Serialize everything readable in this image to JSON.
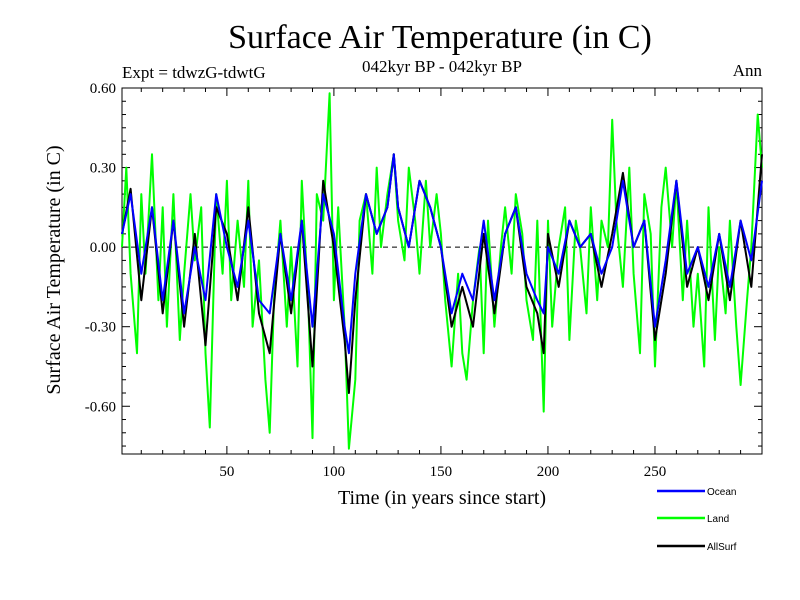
{
  "chart_data": {
    "type": "line",
    "title": "Surface Air Temperature (in C)",
    "subtitle": "042kyr BP - 042kyr BP",
    "expt_label": "Expt = tdwzG-tdwtG",
    "season_label": "Ann",
    "xlabel": "Time (in years since start)",
    "ylabel": "Surface Air Temperature (in C)",
    "xlim": [
      1,
      300
    ],
    "ylim": [
      -0.78,
      0.6
    ],
    "xticks": [
      50,
      100,
      150,
      200,
      250
    ],
    "xtick_labels": [
      "50",
      "100",
      "150",
      "200",
      "250"
    ],
    "yticks": [
      0.6,
      0.3,
      0.0,
      -0.3,
      -0.6
    ],
    "ytick_labels": [
      "0.60",
      "0.30",
      "0.00",
      "-0.30",
      "-0.60"
    ],
    "zero_line": true,
    "grid": false,
    "legend_position": "bottom-right",
    "series": [
      {
        "name": "Ocean",
        "color": "#0000ff",
        "x": [
          1,
          5,
          10,
          15,
          20,
          25,
          30,
          35,
          40,
          45,
          50,
          55,
          60,
          65,
          70,
          75,
          80,
          85,
          90,
          95,
          100,
          105,
          107,
          110,
          115,
          120,
          125,
          128,
          130,
          135,
          140,
          145,
          150,
          155,
          160,
          165,
          170,
          175,
          180,
          185,
          190,
          195,
          198,
          200,
          205,
          210,
          215,
          220,
          225,
          230,
          235,
          240,
          245,
          250,
          255,
          260,
          265,
          270,
          275,
          280,
          285,
          290,
          295,
          300
        ],
        "values": [
          0.05,
          0.2,
          -0.1,
          0.15,
          -0.2,
          0.1,
          -0.25,
          0.0,
          -0.2,
          0.2,
          0.0,
          -0.15,
          0.1,
          -0.2,
          -0.25,
          0.05,
          -0.2,
          0.1,
          -0.3,
          0.2,
          0.05,
          -0.3,
          -0.4,
          -0.1,
          0.2,
          0.05,
          0.15,
          0.35,
          0.15,
          0.0,
          0.25,
          0.15,
          0.0,
          -0.25,
          -0.1,
          -0.2,
          0.1,
          -0.2,
          0.05,
          0.15,
          -0.1,
          -0.2,
          -0.25,
          0.0,
          -0.1,
          0.1,
          0.0,
          0.05,
          -0.1,
          0.0,
          0.25,
          0.0,
          0.1,
          -0.3,
          -0.05,
          0.25,
          -0.1,
          0.0,
          -0.15,
          0.05,
          -0.15,
          0.1,
          -0.05,
          0.25
        ]
      },
      {
        "name": "Land",
        "color": "#00ff00",
        "x": [
          1,
          3,
          5,
          8,
          10,
          12,
          15,
          18,
          20,
          22,
          25,
          28,
          30,
          33,
          35,
          38,
          40,
          42,
          45,
          48,
          50,
          52,
          55,
          58,
          60,
          62,
          65,
          68,
          70,
          72,
          75,
          78,
          80,
          83,
          85,
          88,
          90,
          92,
          95,
          98,
          100,
          102,
          105,
          107,
          110,
          112,
          115,
          118,
          120,
          122,
          125,
          128,
          130,
          133,
          135,
          138,
          140,
          143,
          145,
          148,
          150,
          152,
          155,
          158,
          160,
          162,
          165,
          168,
          170,
          172,
          175,
          178,
          180,
          183,
          185,
          188,
          190,
          193,
          195,
          198,
          200,
          202,
          205,
          208,
          210,
          213,
          215,
          218,
          220,
          223,
          225,
          228,
          230,
          232,
          235,
          238,
          240,
          243,
          245,
          248,
          250,
          253,
          255,
          258,
          260,
          263,
          265,
          268,
          270,
          273,
          275,
          278,
          280,
          283,
          285,
          288,
          290,
          293,
          295,
          298,
          300
        ],
        "values": [
          0.0,
          0.3,
          -0.1,
          -0.4,
          0.2,
          -0.1,
          0.35,
          -0.2,
          0.15,
          -0.3,
          0.2,
          -0.35,
          -0.1,
          0.2,
          -0.05,
          0.15,
          -0.4,
          -0.68,
          0.2,
          -0.1,
          0.25,
          -0.2,
          0.1,
          -0.15,
          0.25,
          -0.3,
          -0.05,
          -0.5,
          -0.7,
          -0.2,
          0.1,
          -0.3,
          0.0,
          -0.45,
          0.25,
          -0.2,
          -0.72,
          0.2,
          0.1,
          0.58,
          -0.2,
          0.15,
          -0.3,
          -0.76,
          -0.5,
          0.1,
          0.2,
          -0.1,
          0.3,
          0.0,
          0.2,
          0.35,
          0.1,
          -0.05,
          0.3,
          0.1,
          -0.1,
          0.25,
          0.0,
          0.2,
          0.05,
          -0.2,
          -0.45,
          -0.1,
          -0.4,
          -0.5,
          -0.2,
          0.0,
          -0.4,
          0.1,
          -0.3,
          0.0,
          0.15,
          -0.1,
          0.2,
          0.05,
          -0.2,
          -0.35,
          0.1,
          -0.62,
          0.1,
          -0.3,
          0.0,
          0.15,
          -0.35,
          0.1,
          0.0,
          -0.25,
          0.15,
          -0.2,
          0.1,
          0.0,
          0.48,
          0.1,
          -0.15,
          0.3,
          -0.1,
          -0.4,
          0.2,
          0.05,
          -0.45,
          0.15,
          0.3,
          0.0,
          0.25,
          -0.2,
          0.1,
          -0.3,
          -0.1,
          -0.45,
          0.15,
          -0.35,
          0.0,
          -0.25,
          0.1,
          -0.3,
          -0.52,
          -0.2,
          0.0,
          0.5,
          0.3
        ]
      },
      {
        "name": "AllSurf",
        "color": "#000000",
        "x": [
          1,
          5,
          10,
          15,
          20,
          25,
          30,
          35,
          40,
          45,
          50,
          55,
          60,
          65,
          70,
          75,
          80,
          85,
          90,
          95,
          100,
          105,
          107,
          110,
          115,
          120,
          125,
          128,
          130,
          135,
          140,
          145,
          150,
          155,
          160,
          165,
          170,
          175,
          180,
          185,
          190,
          195,
          198,
          200,
          205,
          210,
          215,
          220,
          225,
          230,
          235,
          240,
          245,
          250,
          255,
          260,
          265,
          270,
          275,
          280,
          285,
          290,
          295,
          300
        ],
        "values": [
          0.05,
          0.22,
          -0.2,
          0.15,
          -0.25,
          0.1,
          -0.3,
          0.05,
          -0.37,
          0.15,
          0.05,
          -0.2,
          0.15,
          -0.25,
          -0.4,
          0.05,
          -0.25,
          0.1,
          -0.45,
          0.25,
          0.0,
          -0.35,
          -0.55,
          -0.2,
          0.2,
          0.05,
          0.15,
          0.35,
          0.15,
          0.0,
          0.25,
          0.15,
          0.0,
          -0.3,
          -0.15,
          -0.3,
          0.05,
          -0.25,
          0.05,
          0.15,
          -0.15,
          -0.25,
          -0.4,
          0.05,
          -0.15,
          0.1,
          0.0,
          0.05,
          -0.15,
          0.05,
          0.28,
          0.0,
          0.1,
          -0.35,
          -0.1,
          0.25,
          -0.15,
          0.0,
          -0.2,
          0.05,
          -0.2,
          0.1,
          -0.15,
          0.35
        ]
      }
    ]
  }
}
